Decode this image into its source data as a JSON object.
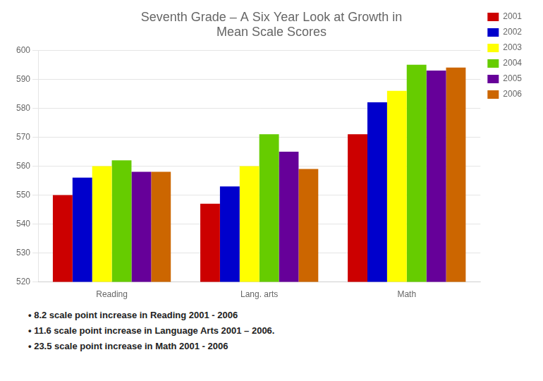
{
  "chart_data": {
    "type": "bar",
    "title": "Seventh Grade – A Six Year Look at Growth in\nMean Scale Scores",
    "categories": [
      "Reading",
      "Lang. arts",
      "Math"
    ],
    "series": [
      {
        "name": "2001",
        "color": "#cc0000",
        "values": [
          550,
          547,
          571
        ]
      },
      {
        "name": "2002",
        "color": "#0000cc",
        "values": [
          556,
          553,
          582
        ]
      },
      {
        "name": "2003",
        "color": "#ffff00",
        "values": [
          560,
          560,
          586
        ]
      },
      {
        "name": "2004",
        "color": "#66cc00",
        "values": [
          562,
          571,
          595
        ]
      },
      {
        "name": "2005",
        "color": "#660099",
        "values": [
          558,
          565,
          593
        ]
      },
      {
        "name": "2006",
        "color": "#cc6600",
        "values": [
          558,
          559,
          594
        ]
      }
    ],
    "ylim": [
      520,
      600
    ],
    "yticks": [
      520,
      530,
      540,
      550,
      560,
      570,
      580,
      590,
      600
    ],
    "grid": true,
    "legend": "right",
    "annotations": [
      "•  8.2 scale point increase in Reading 2001 - 2006",
      "•  11.6 scale point increase in Language Arts 2001 – 2006.",
      "•  23.5 scale point increase in Math 2001 - 2006"
    ]
  }
}
